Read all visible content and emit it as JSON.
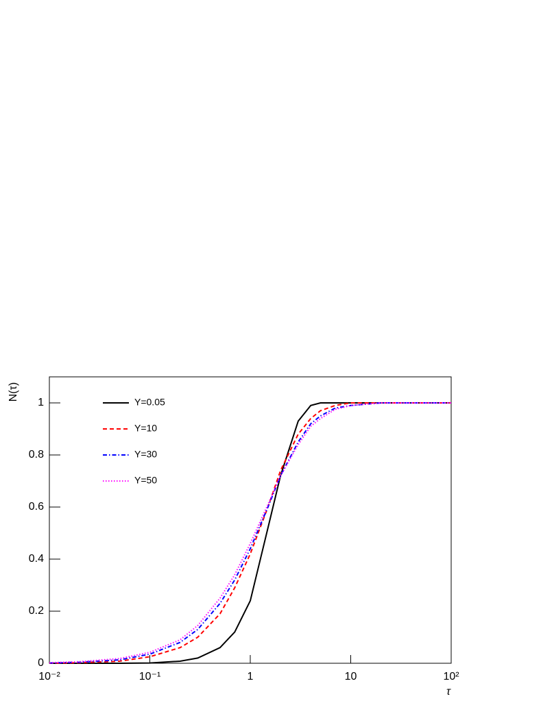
{
  "chart_data": {
    "type": "line",
    "x_label": "τ",
    "y_label": "N(τ)",
    "x": [
      0.01,
      0.02,
      0.05,
      0.1,
      0.2,
      0.3,
      0.5,
      0.7,
      1,
      1.5,
      2,
      3,
      4,
      5,
      7,
      10,
      20,
      50,
      100
    ],
    "series": [
      {
        "name": "Y=0.05",
        "color": "#000000",
        "dash": "none",
        "values": [
          0,
          0,
          0,
          0.001,
          0.008,
          0.02,
          0.06,
          0.12,
          0.24,
          0.52,
          0.72,
          0.93,
          0.99,
          1,
          1,
          1,
          1,
          1,
          1
        ]
      },
      {
        "name": "Y=10",
        "color": "#ff0000",
        "dash": "6 4",
        "values": [
          0,
          0.002,
          0.008,
          0.025,
          0.06,
          0.1,
          0.19,
          0.29,
          0.42,
          0.6,
          0.74,
          0.88,
          0.94,
          0.97,
          0.99,
          1,
          1,
          1,
          1
        ]
      },
      {
        "name": "Y=30",
        "color": "#0000ff",
        "dash": "6 3 1.5 3",
        "values": [
          0.001,
          0.004,
          0.013,
          0.035,
          0.08,
          0.13,
          0.23,
          0.32,
          0.44,
          0.6,
          0.72,
          0.85,
          0.92,
          0.95,
          0.98,
          0.99,
          1,
          1,
          1
        ]
      },
      {
        "name": "Y=50",
        "color": "#ff00ff",
        "dash": "1.5 2.5",
        "values": [
          0.002,
          0.006,
          0.018,
          0.042,
          0.09,
          0.145,
          0.25,
          0.34,
          0.46,
          0.61,
          0.72,
          0.84,
          0.91,
          0.94,
          0.975,
          0.99,
          1,
          1,
          1
        ]
      }
    ],
    "xscale": "log",
    "xlim": [
      0.01,
      100
    ],
    "xticks": [
      {
        "value": 0.01,
        "label": "10⁻²"
      },
      {
        "value": 0.1,
        "label": "10⁻¹"
      },
      1,
      10,
      {
        "value": 100,
        "label": "10²"
      }
    ],
    "ylim": [
      0,
      1.1
    ],
    "yticks": [
      0,
      0.2,
      0.4,
      0.6,
      0.8,
      1
    ],
    "grid": false,
    "legend": "upper-left"
  }
}
